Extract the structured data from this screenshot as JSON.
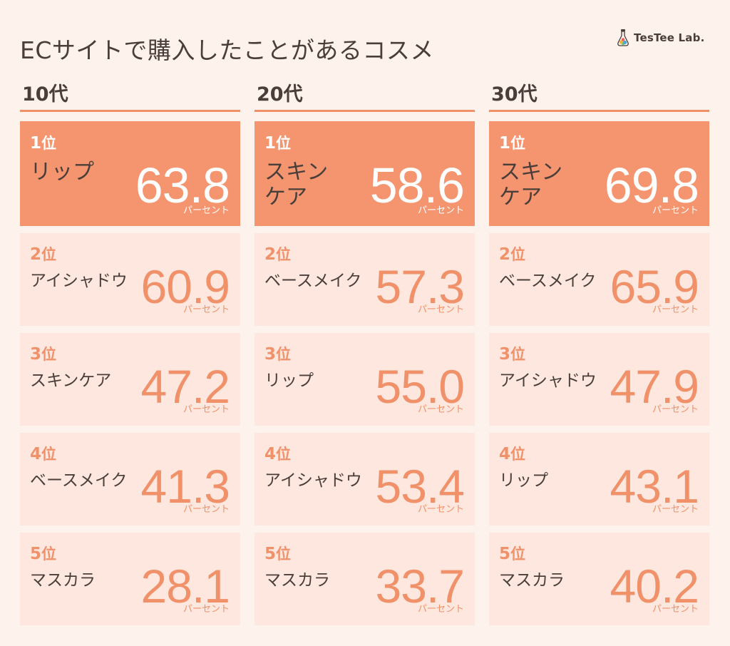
{
  "title": "ECサイトで購入したことがあるコスメ",
  "brand": {
    "name": "TesTee Lab.",
    "icon": "flask-icon"
  },
  "unit_label": "パーセント",
  "rank_suffix": "位",
  "colors": {
    "accent": "#f0916a",
    "first_bg": "#f59570",
    "card_bg": "#fde7de",
    "page_bg": "#fdf3ec",
    "text": "#4a3e3a"
  },
  "chart_data": {
    "type": "table",
    "title": "ECサイトで購入したことがあるコスメ",
    "unit": "パーセント",
    "groups": [
      {
        "name": "10代",
        "ranking": [
          {
            "rank": "1",
            "item": "リップ",
            "value": "63.8"
          },
          {
            "rank": "2",
            "item": "アイシャドウ",
            "value": "60.9"
          },
          {
            "rank": "3",
            "item": "スキンケア",
            "value": "47.2"
          },
          {
            "rank": "4",
            "item": "ベースメイク",
            "value": "41.3"
          },
          {
            "rank": "5",
            "item": "マスカラ",
            "value": "28.1"
          }
        ]
      },
      {
        "name": "20代",
        "ranking": [
          {
            "rank": "1",
            "item": "スキン\nケア",
            "value": "58.6"
          },
          {
            "rank": "2",
            "item": "ベースメイク",
            "value": "57.3"
          },
          {
            "rank": "3",
            "item": "リップ",
            "value": "55.0"
          },
          {
            "rank": "4",
            "item": "アイシャドウ",
            "value": "53.4"
          },
          {
            "rank": "5",
            "item": "マスカラ",
            "value": "33.7"
          }
        ]
      },
      {
        "name": "30代",
        "ranking": [
          {
            "rank": "1",
            "item": "スキン\nケア",
            "value": "69.8"
          },
          {
            "rank": "2",
            "item": "ベースメイク",
            "value": "65.9"
          },
          {
            "rank": "3",
            "item": "アイシャドウ",
            "value": "47.9"
          },
          {
            "rank": "4",
            "item": "リップ",
            "value": "43.1"
          },
          {
            "rank": "5",
            "item": "マスカラ",
            "value": "40.2"
          }
        ]
      }
    ]
  }
}
